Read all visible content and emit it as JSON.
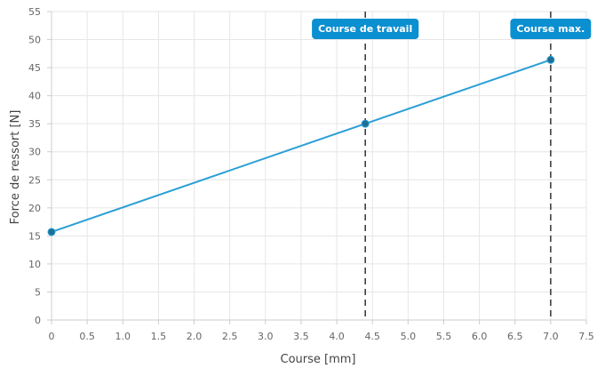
{
  "chart_data": {
    "type": "line",
    "title": "",
    "xlabel": "Course [mm]",
    "ylabel": "Force de ressort [N]",
    "xlim": [
      0,
      7.5
    ],
    "ylim": [
      0,
      55
    ],
    "x_ticks": [
      "0",
      "0.5",
      "1.0",
      "1.5",
      "2.0",
      "2.5",
      "3.0",
      "3.5",
      "4.0",
      "4.5",
      "5.0",
      "5.5",
      "6.0",
      "6.5",
      "7.0",
      "7.5"
    ],
    "y_ticks": [
      "0",
      "5",
      "10",
      "15",
      "20",
      "25",
      "30",
      "35",
      "40",
      "45",
      "50",
      "55"
    ],
    "grid": true,
    "series": [
      {
        "color": "#2a9fd6",
        "points": [
          {
            "x": 0,
            "y": 15.7
          },
          {
            "x": 4.4,
            "y": 35
          },
          {
            "x": 7.0,
            "y": 46.4
          }
        ]
      }
    ],
    "annotations": [
      {
        "label": "Course de travail",
        "x": 4.4,
        "style": "dashed-vertical",
        "color": "#0a8fd0"
      },
      {
        "label": "Course max.",
        "x": 7.0,
        "style": "dashed-vertical",
        "color": "#0a8fd0"
      }
    ]
  }
}
